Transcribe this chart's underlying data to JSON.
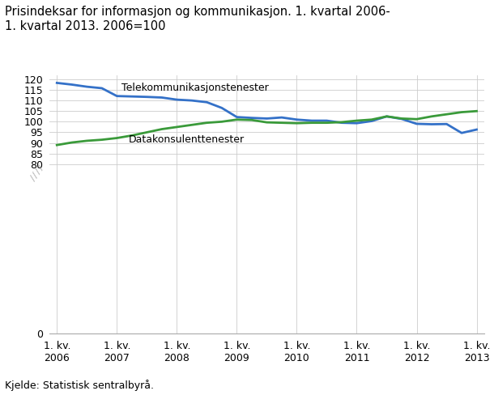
{
  "title_line1": "Prisindeksar for informasjon og kommunikasjon. 1. kvartal 2006-",
  "title_line2": "1. kvartal 2013. 2006=100",
  "footnote": "Kjelde: Statistisk sentralbyrå.",
  "telecom_label": "Telekommunikasjonstenester",
  "datakon_label": "Datakonsulenttenester",
  "telecom_color": "#3471c8",
  "datakon_color": "#3a9a3a",
  "background_color": "#ffffff",
  "grid_color": "#cccccc",
  "ylim": [
    0,
    122
  ],
  "yticks": [
    0,
    80,
    85,
    90,
    95,
    100,
    105,
    110,
    115,
    120
  ],
  "xtick_positions": [
    0,
    4,
    8,
    12,
    16,
    20,
    24,
    28
  ],
  "xtick_labels": [
    "1. kv.\n2006",
    "1. kv.\n2007",
    "1. kv.\n2008",
    "1. kv.\n2009",
    "1. kv.\n2010",
    "1. kv.\n2011",
    "1. kv.\n2012",
    "1. kv.\n2013"
  ],
  "telecom_values": [
    118.3,
    117.5,
    116.5,
    115.8,
    112.1,
    111.9,
    111.7,
    111.4,
    110.4,
    110.0,
    109.2,
    106.5,
    102.2,
    101.8,
    101.5,
    102.0,
    101.0,
    100.5,
    100.5,
    99.5,
    99.3,
    100.3,
    102.5,
    101.3,
    99.0,
    98.8,
    98.9,
    94.7,
    96.3
  ],
  "datakon_values": [
    89.0,
    90.2,
    91.0,
    91.5,
    92.3,
    93.5,
    95.0,
    96.5,
    97.5,
    98.5,
    99.5,
    100.0,
    101.0,
    100.8,
    99.7,
    99.5,
    99.3,
    99.5,
    99.5,
    99.8,
    100.5,
    101.0,
    102.5,
    101.5,
    101.2,
    102.5,
    103.5,
    104.5,
    105.0
  ],
  "telecom_ann_x": 4.3,
  "telecom_ann_y": 113.5,
  "datakon_ann_x": 4.8,
  "datakon_ann_y": 94.2,
  "title_fontsize": 10.5,
  "tick_fontsize": 9,
  "ann_fontsize": 9,
  "footnote_fontsize": 9,
  "linewidth": 2.0,
  "xlim_left": -0.5,
  "xlim_right": 28.5
}
